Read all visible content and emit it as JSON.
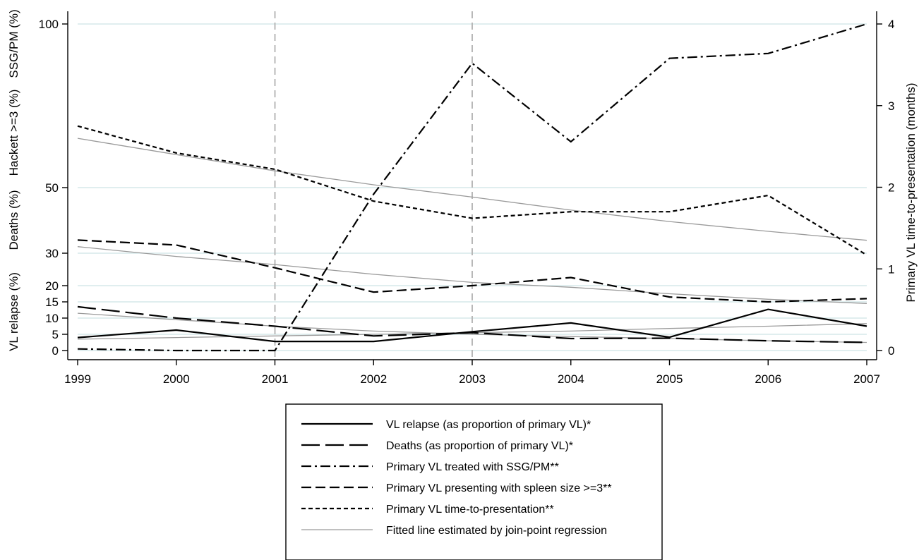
{
  "chart_data": {
    "type": "line",
    "title": "",
    "x": [
      1999,
      2000,
      2001,
      2002,
      2003,
      2004,
      2005,
      2006,
      2007
    ],
    "xlim": [
      1999,
      2007
    ],
    "x_ticks": [
      "1999",
      "2000",
      "2001",
      "2002",
      "2003",
      "2004",
      "2005",
      "2006",
      "2007"
    ],
    "vertical_reference_lines": [
      2001,
      2003
    ],
    "left_axis": {
      "ticks": [
        {
          "value": 100,
          "label": "100"
        },
        {
          "value": 50,
          "label": "50"
        },
        {
          "value": 30,
          "label": "30"
        },
        {
          "value": 20,
          "label": "20"
        },
        {
          "value": 15,
          "label": "15"
        },
        {
          "value": 10,
          "label": "10"
        },
        {
          "value": 5,
          "label": "5"
        },
        {
          "value": 0,
          "label": "0"
        }
      ],
      "labels": [
        "VL relapse (%)",
        "Deaths (%)",
        "Hackett >=3 (%)",
        "SSG/PM (%)"
      ]
    },
    "right_axis": {
      "label": "Primary VL time-to-presentation (months)",
      "range": [
        0,
        4
      ],
      "ticks": [
        {
          "value": 0,
          "label": "0"
        },
        {
          "value": 1,
          "label": "1"
        },
        {
          "value": 2,
          "label": "2"
        },
        {
          "value": 3,
          "label": "3"
        },
        {
          "value": 4,
          "label": "4"
        }
      ]
    },
    "series": [
      {
        "name": "VL relapse (as proportion of primary VL)*",
        "style": "solid",
        "axis": "left",
        "values": [
          4,
          6.3,
          2.8,
          2.8,
          5.8,
          8.5,
          4.1,
          12.7,
          7.5
        ]
      },
      {
        "name": "Deaths (as proportion of primary VL)*",
        "style": "longdash",
        "axis": "left",
        "values": [
          13.5,
          10,
          7.5,
          4.5,
          5.5,
          3.7,
          3.8,
          3,
          2.5
        ]
      },
      {
        "name": "Primary VL treated with SSG/PM**",
        "style": "dashdot",
        "axis": "left",
        "values": [
          0.5,
          0,
          0,
          48,
          88,
          64,
          89.5,
          91,
          100
        ]
      },
      {
        "name": "Primary VL presenting with spleen size >=3**",
        "style": "dash",
        "axis": "left",
        "values": [
          34,
          32.5,
          25.5,
          18,
          20,
          22.5,
          16.5,
          15,
          16
        ]
      },
      {
        "name": "Primary VL time-to-presentation**",
        "style": "shortdash",
        "axis": "right",
        "values": [
          2.75,
          2.42,
          2.22,
          1.83,
          1.62,
          1.7,
          1.7,
          1.9,
          1.17
        ]
      },
      {
        "name": "Fitted line estimated by join-point regression",
        "style": "thin",
        "axis": "fit",
        "fits": [
          {
            "axis": "right",
            "values": [
              2.6,
              2.4,
              2.2,
              2.03,
              1.88,
              1.72,
              1.58,
              1.46,
              1.35
            ]
          },
          {
            "axis": "left",
            "values": [
              32,
              29,
              26.5,
              23.5,
              21,
              19.5,
              17.5,
              15.8,
              14.5
            ]
          },
          {
            "axis": "left",
            "values": [
              11.5,
              9.5,
              7.5,
              6,
              5,
              4.3,
              3.7,
              3,
              2.5
            ]
          },
          {
            "axis": "left",
            "values": [
              3.5,
              4,
              4.5,
              5,
              5.5,
              6,
              6.8,
              7.5,
              8.3
            ]
          }
        ]
      }
    ],
    "legend": {
      "placement": "bottom-center"
    },
    "colors": {
      "series": "#000000",
      "fit": "#9a9a9a",
      "grid": "#d6e8ea",
      "refline": "#b8b8b8"
    }
  }
}
